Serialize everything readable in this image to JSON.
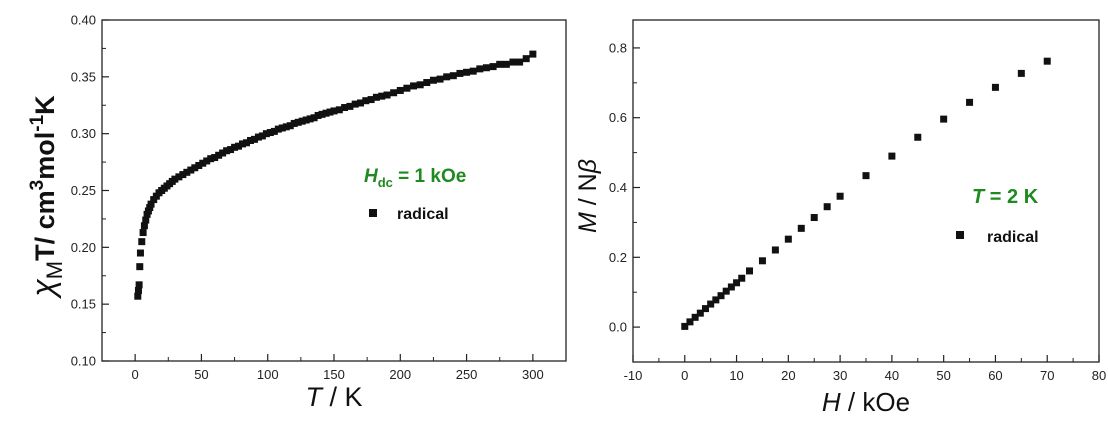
{
  "chart_data": [
    {
      "type": "scatter",
      "title": "",
      "xlabel": {
        "italic": "T",
        "rest": " / K"
      },
      "ylabel": {
        "chi": "χ",
        "sub": "M",
        "rest1": "T/ cm",
        "sup1": "3",
        "rest2": "mol",
        "sup2": "-1",
        "rest3": "K"
      },
      "xlim": [
        -25,
        325
      ],
      "ylim": [
        0.1,
        0.4
      ],
      "x_ticks": [
        0,
        50,
        100,
        150,
        200,
        250,
        300
      ],
      "x_tick_labels": [
        "0",
        "50",
        "100",
        "150",
        "200",
        "250",
        "300"
      ],
      "y_ticks": [
        0.1,
        0.15,
        0.2,
        0.25,
        0.3,
        0.35,
        0.4
      ],
      "y_tick_labels": [
        "0.10",
        "0.15",
        "0.20",
        "0.25",
        "0.30",
        "0.35",
        "0.40"
      ],
      "annotation": {
        "italic": "H",
        "sub": "dc",
        "rest": " = 1 kOe",
        "color": "#1f8a1f"
      },
      "legend": {
        "label": "radical",
        "placement": "right-center"
      },
      "marker_color": "#111111",
      "series": [
        {
          "name": "radical",
          "x": [
            2,
            2.5,
            3,
            3.5,
            4,
            5,
            6,
            7,
            8,
            9,
            10,
            11,
            12,
            14,
            16,
            18,
            20,
            22,
            24,
            26,
            28,
            30,
            33,
            36,
            39,
            42,
            45,
            48,
            51,
            54,
            57,
            60,
            63,
            66,
            69,
            72,
            75,
            78,
            81,
            84,
            87,
            90,
            93,
            96,
            99,
            102,
            105,
            108,
            111,
            114,
            117,
            120,
            123,
            126,
            129,
            132,
            135,
            138,
            141,
            144,
            147,
            150,
            154,
            158,
            162,
            166,
            170,
            174,
            178,
            182,
            186,
            190,
            195,
            200,
            205,
            210,
            215,
            220,
            225,
            230,
            235,
            240,
            245,
            250,
            255,
            260,
            265,
            270,
            275,
            280,
            285,
            290,
            295,
            300
          ],
          "y": [
            0.157,
            0.162,
            0.167,
            0.183,
            0.195,
            0.205,
            0.213,
            0.219,
            0.224,
            0.229,
            0.232,
            0.235,
            0.238,
            0.242,
            0.245,
            0.248,
            0.25,
            0.252,
            0.254,
            0.256,
            0.258,
            0.26,
            0.262,
            0.264,
            0.266,
            0.268,
            0.27,
            0.272,
            0.274,
            0.276,
            0.278,
            0.279,
            0.281,
            0.283,
            0.285,
            0.286,
            0.288,
            0.289,
            0.291,
            0.292,
            0.294,
            0.295,
            0.297,
            0.298,
            0.3,
            0.301,
            0.302,
            0.304,
            0.305,
            0.306,
            0.307,
            0.309,
            0.31,
            0.311,
            0.312,
            0.313,
            0.314,
            0.316,
            0.317,
            0.318,
            0.319,
            0.32,
            0.321,
            0.323,
            0.324,
            0.326,
            0.327,
            0.329,
            0.33,
            0.332,
            0.333,
            0.334,
            0.336,
            0.338,
            0.34,
            0.342,
            0.343,
            0.345,
            0.347,
            0.348,
            0.35,
            0.351,
            0.353,
            0.354,
            0.355,
            0.357,
            0.358,
            0.359,
            0.361,
            0.361,
            0.363,
            0.363,
            0.366,
            0.37
          ]
        }
      ]
    },
    {
      "type": "scatter",
      "title": "",
      "xlabel": {
        "italic": "H",
        "rest": " / kOe"
      },
      "ylabel": {
        "italic": "M",
        "rest": " / N",
        "beta": "β"
      },
      "xlim": [
        -10,
        80
      ],
      "ylim": [
        -0.1,
        0.88
      ],
      "x_ticks": [
        -10,
        0,
        10,
        20,
        30,
        40,
        50,
        60,
        70,
        80
      ],
      "x_tick_labels": [
        "-10",
        "0",
        "10",
        "20",
        "30",
        "40",
        "50",
        "60",
        "70",
        "80"
      ],
      "y_ticks": [
        0.0,
        0.2,
        0.4,
        0.6,
        0.8
      ],
      "y_tick_labels": [
        "0.0",
        "0.2",
        "0.4",
        "0.6",
        "0.8"
      ],
      "annotation": {
        "italic": "T",
        "rest": " = 2 K",
        "color": "#1f8a1f"
      },
      "legend": {
        "label": "radical",
        "placement": "right-center"
      },
      "marker_color": "#111111",
      "series": [
        {
          "name": "radical",
          "x": [
            0,
            1,
            2,
            3,
            4,
            5,
            6,
            7,
            8,
            9,
            10,
            11,
            12.5,
            15,
            17.5,
            20,
            22.5,
            25,
            27.5,
            30,
            35,
            40,
            45,
            50,
            55,
            60,
            65,
            70
          ],
          "y": [
            0.002,
            0.015,
            0.028,
            0.04,
            0.053,
            0.066,
            0.078,
            0.09,
            0.103,
            0.115,
            0.127,
            0.14,
            0.161,
            0.19,
            0.221,
            0.252,
            0.283,
            0.314,
            0.345,
            0.375,
            0.434,
            0.49,
            0.544,
            0.596,
            0.644,
            0.687,
            0.727,
            0.762
          ]
        }
      ]
    }
  ]
}
